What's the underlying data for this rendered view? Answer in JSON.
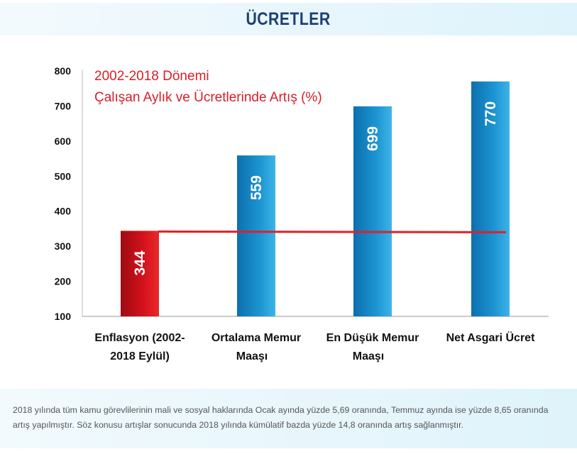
{
  "header": {
    "title": "ÜCRETLER"
  },
  "chart_data": {
    "type": "bar",
    "title": [
      "2002-2018 Dönemi",
      "Çalışan Aylık ve Ücretlerinde Artış (%)"
    ],
    "categories": [
      [
        "Enflasyon (2002-",
        "2018 Eylül)"
      ],
      [
        "Ortalama Memur",
        "Maaşı"
      ],
      [
        "En Düşük Memur",
        "Maaşı"
      ],
      [
        "Net Asgari Ücret"
      ]
    ],
    "values": [
      344,
      559,
      699,
      770
    ],
    "data_labels": [
      "344",
      "559",
      "699",
      "770"
    ],
    "colors": [
      "#c8101a",
      "#1a8cc8",
      "#1a8cc8",
      "#1a8cc8"
    ],
    "reference_line": {
      "value": 344,
      "color": "#e0202a"
    },
    "yticks": [
      "800",
      "700",
      "600",
      "500",
      "400",
      "300",
      "200",
      "100"
    ],
    "ylim": [
      100,
      800
    ],
    "grid": false
  },
  "footer": {
    "text": "2018 yılında tüm kamu görevlilerinin mali ve sosyal haklarında Ocak ayında yüzde 5,69 oranında, Temmuz ayında ise yüzde 8,65 oranında artış yapılmıştır. Söz konusu artışlar sonucunda 2018 yılında kümülatif bazda yüzde 14,8 oranında artış sağlanmıştır."
  }
}
